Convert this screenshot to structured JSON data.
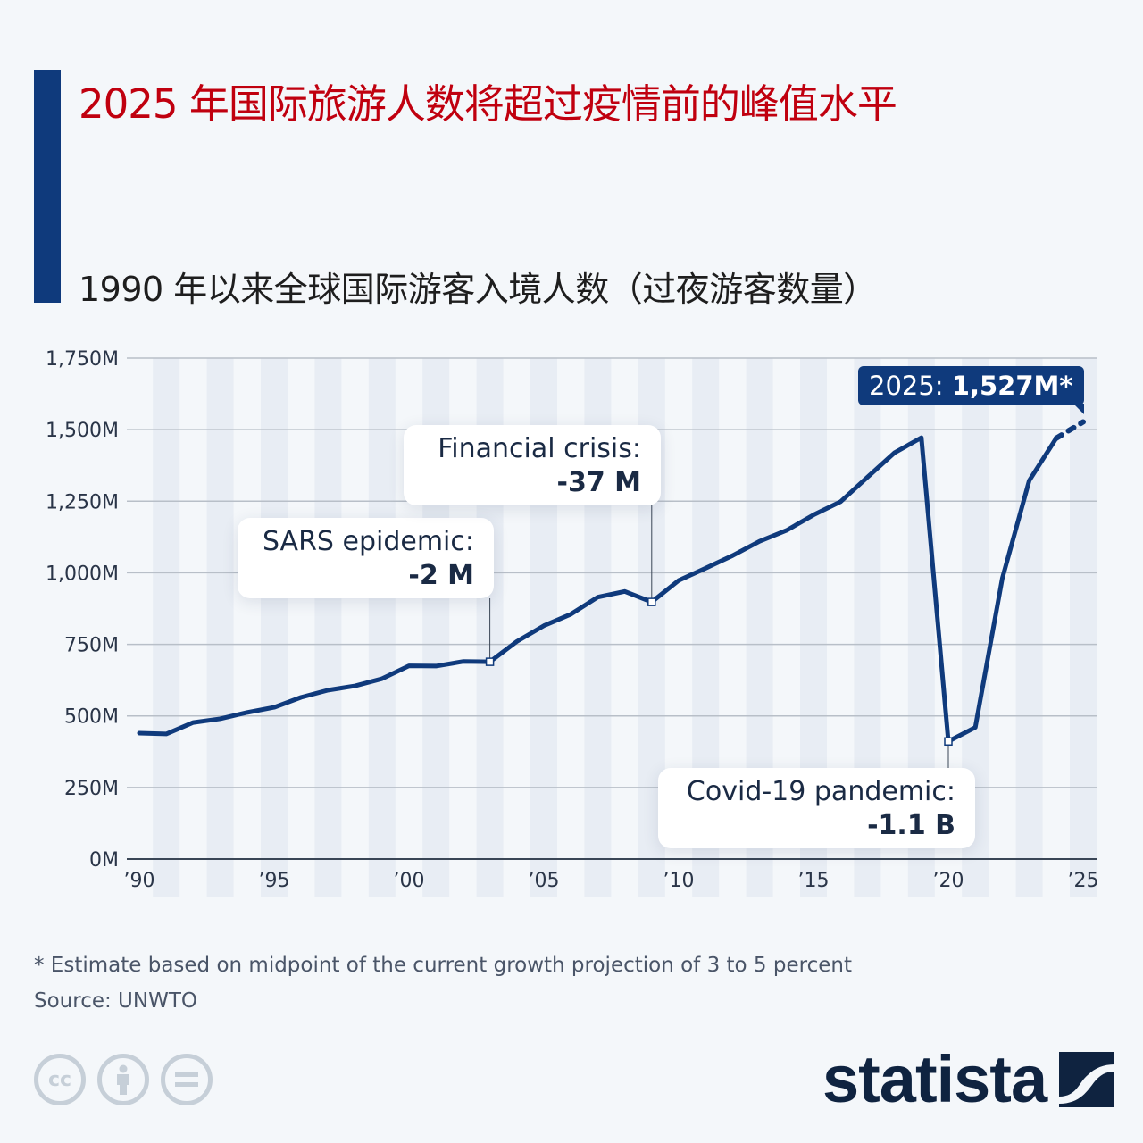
{
  "header": {
    "title": "2025 年国际旅游人数将超过疫情前的峰值水平",
    "subtitle": "1990 年以来全球国际游客入境人数（过夜游客数量）",
    "accent_color": "#0f3a7c",
    "title_color": "#c0000f"
  },
  "chart_data": {
    "type": "line",
    "title": "2025 年国际旅游人数将超过疫情前的峰值水平",
    "subtitle": "1990 年以来全球国际游客入境人数（过夜游客数量）",
    "xlabel": "",
    "ylabel": "",
    "ylim": [
      0,
      1750
    ],
    "unit": "M",
    "grid": true,
    "line_color": "#0f3a7c",
    "x": [
      1990,
      1991,
      1992,
      1993,
      1994,
      1995,
      1996,
      1997,
      1998,
      1999,
      2000,
      2001,
      2002,
      2003,
      2004,
      2005,
      2006,
      2007,
      2008,
      2009,
      2010,
      2011,
      2012,
      2013,
      2014,
      2015,
      2016,
      2017,
      2018,
      2019,
      2020,
      2021,
      2022,
      2023,
      2024,
      2025
    ],
    "values": [
      440,
      437,
      477,
      490,
      512,
      530,
      565,
      590,
      605,
      630,
      675,
      674,
      690,
      689,
      760,
      815,
      855,
      915,
      935,
      898,
      973,
      1016,
      1060,
      1110,
      1148,
      1202,
      1248,
      1334,
      1419,
      1472,
      411,
      460,
      980,
      1322,
      1470,
      1527
    ],
    "projected_from": 2024,
    "y_ticks": [
      "0M",
      "250M",
      "500M",
      "750M",
      "1,000M",
      "1,250M",
      "1,500M",
      "1,750M"
    ],
    "y_tick_values": [
      0,
      250,
      500,
      750,
      1000,
      1250,
      1500,
      1750
    ],
    "x_ticks": [
      "’90",
      "’95",
      "’00",
      "’05",
      "’10",
      "’15",
      "’20",
      "’25"
    ],
    "x_tick_years": [
      1990,
      1995,
      2000,
      2005,
      2010,
      2015,
      2020,
      2025
    ],
    "annotations": [
      {
        "year": 2003,
        "label": "SARS epidemic:",
        "value": "-2 M"
      },
      {
        "year": 2009,
        "label": "Financial crisis:",
        "value": "-37 M"
      },
      {
        "year": 2020,
        "label": "Covid-19 pandemic:",
        "value": "-1.1 B"
      },
      {
        "year": 2025,
        "label": "2025:",
        "value": "1,527M",
        "suffix": "*"
      }
    ]
  },
  "callouts": {
    "sars": {
      "label": "SARS epidemic:",
      "value": "-2 M"
    },
    "financial": {
      "label": "Financial crisis:",
      "value": "-37 M"
    },
    "covid": {
      "label": "Covid-19 pandemic:",
      "value": "-1.1 B"
    },
    "projection": {
      "year_label": "2025:",
      "value": "1,527M",
      "suffix": "*"
    }
  },
  "footer": {
    "footnote": "* Estimate based on midpoint of the current growth projection of 3 to 5 percent",
    "source": "Source: UNWTO",
    "license_icons": [
      "cc-icon",
      "attribution-icon",
      "no-derivatives-icon"
    ],
    "logo_text": "statista"
  }
}
